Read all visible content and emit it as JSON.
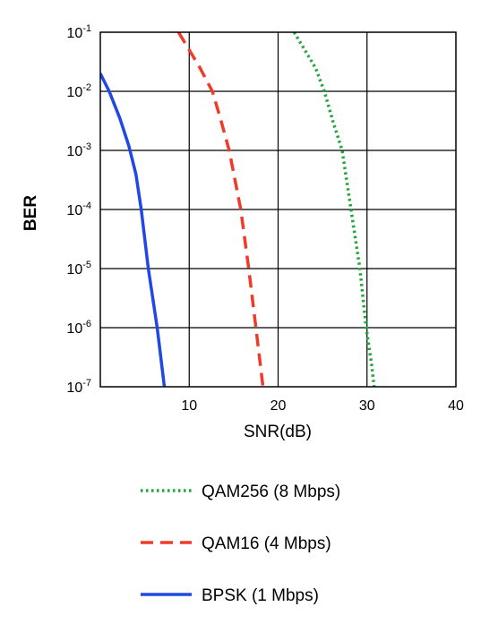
{
  "chart_data": {
    "type": "line",
    "title": "",
    "xlabel": "SNR(dB)",
    "ylabel": "BER",
    "xlim": [
      0,
      40
    ],
    "ylim": [
      1e-07,
      0.1
    ],
    "y_scale": "log",
    "grid": true,
    "x_ticks": [
      {
        "value": 10,
        "label": "10"
      },
      {
        "value": 20,
        "label": "20"
      },
      {
        "value": 30,
        "label": "30"
      },
      {
        "value": 40,
        "label": "40"
      }
    ],
    "y_ticks": [
      {
        "value": 0.1,
        "base": "10",
        "exp": "-1"
      },
      {
        "value": 0.01,
        "base": "10",
        "exp": "-2"
      },
      {
        "value": 0.001,
        "base": "10",
        "exp": "-3"
      },
      {
        "value": 0.0001,
        "base": "10",
        "exp": "-4"
      },
      {
        "value": 1e-05,
        "base": "10",
        "exp": "-5"
      },
      {
        "value": 1e-06,
        "base": "10",
        "exp": "-6"
      },
      {
        "value": 1e-07,
        "base": "10",
        "exp": "-7"
      }
    ],
    "legend_position": "bottom",
    "series": [
      {
        "name": "QAM256 (8 Mbps)",
        "color": "#22a53a",
        "style": "dotted",
        "x": [
          21.8,
          23.0,
          24.2,
          25.2,
          26.2,
          27.2,
          28.2,
          29.2,
          29.9,
          30.5,
          30.8
        ],
        "y": [
          0.1,
          0.05,
          0.025,
          0.01,
          0.003,
          0.001,
          0.0001,
          1e-05,
          1e-06,
          2.5e-07,
          1e-07
        ]
      },
      {
        "name": "QAM16 (4 Mbps)",
        "color": "#f03a2a",
        "style": "dashed",
        "x": [
          8.8,
          10.0,
          11.2,
          12.6,
          13.5,
          14.5,
          15.8,
          16.7,
          17.5,
          18.3
        ],
        "y": [
          0.1,
          0.05,
          0.025,
          0.01,
          0.0035,
          0.001,
          0.0001,
          1e-05,
          1e-06,
          1e-07
        ]
      },
      {
        "name": "BPSK (1 Mbps)",
        "color": "#1f48e6",
        "style": "solid",
        "x": [
          0.0,
          1.0,
          2.2,
          3.2,
          4.0,
          4.6,
          5.4,
          6.4,
          7.2,
          8.0
        ],
        "y": [
          0.02,
          0.01,
          0.0035,
          0.0012,
          0.0004,
          0.0001,
          1e-05,
          1e-06,
          1e-07,
          4e-08
        ]
      }
    ]
  }
}
